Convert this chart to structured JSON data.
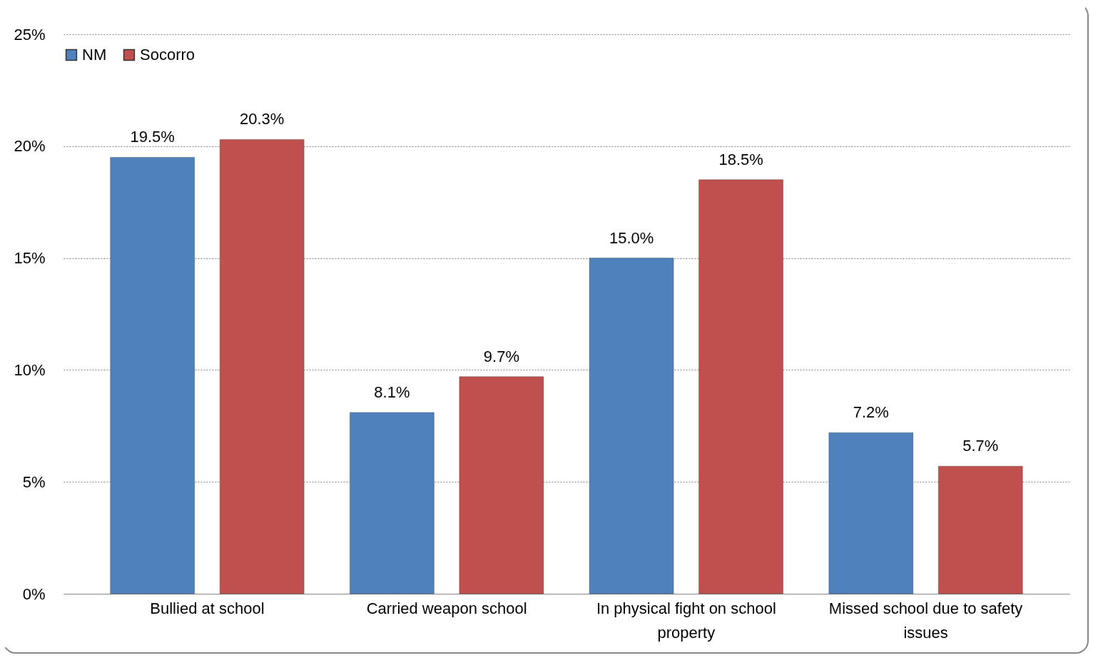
{
  "chart_data": {
    "type": "bar",
    "categories": [
      "Bullied at school",
      "Carried weapon school",
      "In physical fight on school property",
      "Missed school due to safety issues"
    ],
    "series": [
      {
        "name": "NM",
        "color": "#4f81bd",
        "values": [
          19.5,
          8.1,
          15.0,
          7.2
        ],
        "value_labels": [
          "19.5%",
          "8.1%",
          "15.0%",
          "7.2%"
        ]
      },
      {
        "name": "Socorro",
        "color": "#c0504d",
        "values": [
          20.3,
          9.7,
          18.5,
          5.7
        ],
        "value_labels": [
          "20.3%",
          "9.7%",
          "18.5%",
          "5.7%"
        ]
      }
    ],
    "ylim": [
      0,
      25
    ],
    "yticks": [
      {
        "value": 0,
        "label": "0%"
      },
      {
        "value": 5,
        "label": "5%"
      },
      {
        "value": 10,
        "label": "10%"
      },
      {
        "value": 15,
        "label": "15%"
      },
      {
        "value": 20,
        "label": "20%"
      },
      {
        "value": 25,
        "label": "25%"
      }
    ],
    "grid": "y",
    "legend": "top"
  }
}
